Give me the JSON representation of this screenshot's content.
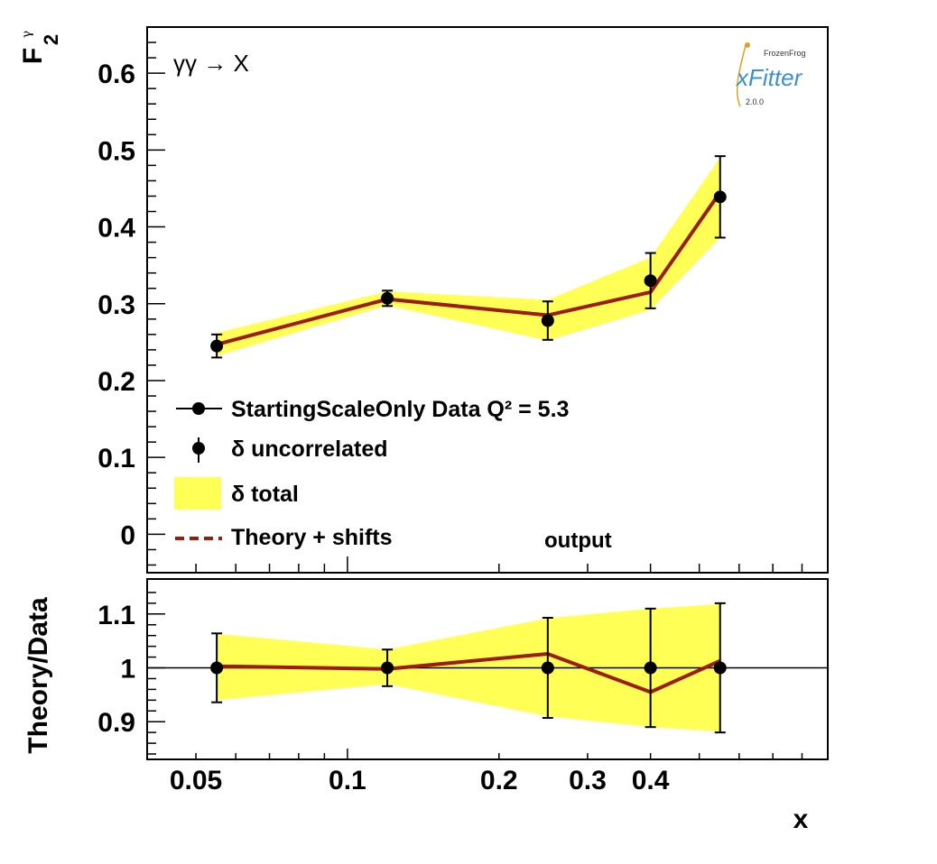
{
  "chart_data": [
    {
      "type": "line",
      "panel": "main",
      "ylabel": "F",
      "ylabel_super": "γ",
      "ylabel_sub": "2",
      "annotation": "γγ → X",
      "annotation2": "output",
      "x_scale": "log",
      "xlim": [
        0.04,
        0.9
      ],
      "ylim": [
        -0.05,
        0.66
      ],
      "yticks": [
        "0",
        "0.1",
        "0.2",
        "0.3",
        "0.4",
        "0.5",
        "0.6"
      ],
      "x": [
        0.055,
        0.12,
        0.25,
        0.4,
        0.55
      ],
      "series": [
        {
          "name": "StartingScaleOnly  Data Q² = 5.3",
          "values": [
            0.245,
            0.307,
            0.278,
            0.33,
            0.439
          ],
          "unc": [
            0.015,
            0.01,
            0.025,
            0.036,
            0.053
          ]
        },
        {
          "name": "Theory + shifts",
          "values": [
            0.247,
            0.306,
            0.285,
            0.315,
            0.445
          ]
        }
      ],
      "band_total": {
        "name": "δ total",
        "low": [
          0.232,
          0.298,
          0.252,
          0.292,
          0.386
        ],
        "high": [
          0.262,
          0.316,
          0.305,
          0.36,
          0.49
        ]
      },
      "legend": [
        {
          "kind": "line-marker",
          "label": "StartingScaleOnly  Data Q² = 5.3"
        },
        {
          "kind": "errorbar",
          "label": "δ uncorrelated"
        },
        {
          "kind": "band",
          "label": "δ total"
        },
        {
          "kind": "dashed",
          "label": "Theory + shifts"
        }
      ],
      "legend_position": "bottom-left",
      "colors": {
        "band": "#ffff55",
        "theory": "#9c1c10",
        "data": "#000000"
      }
    },
    {
      "type": "line",
      "panel": "ratio",
      "ylabel": "Theory/Data",
      "xlabel": "x",
      "x_scale": "log",
      "xlim": [
        0.04,
        0.9
      ],
      "ylim": [
        0.83,
        1.165
      ],
      "yticks": [
        "0.9",
        "1",
        "1.1"
      ],
      "xticks": [
        "0.05",
        "0.1",
        "0.2",
        "0.3",
        "0.4"
      ],
      "x": [
        0.055,
        0.12,
        0.25,
        0.4,
        0.55
      ],
      "data_ratio": [
        1.0,
        1.0,
        1.0,
        1.0,
        1.0
      ],
      "data_err": [
        0.064,
        0.034,
        0.093,
        0.11,
        0.12
      ],
      "theory_ratio": [
        1.003,
        0.998,
        1.026,
        0.955,
        1.013
      ],
      "band_low": [
        0.94,
        0.97,
        0.91,
        0.89,
        0.882
      ],
      "band_high": [
        1.063,
        1.034,
        1.092,
        1.11,
        1.118
      ],
      "reference_line": 1.0
    }
  ],
  "logo": {
    "brand": "xFitter",
    "maker": "FrozenFrog",
    "version": "2.0.0"
  }
}
